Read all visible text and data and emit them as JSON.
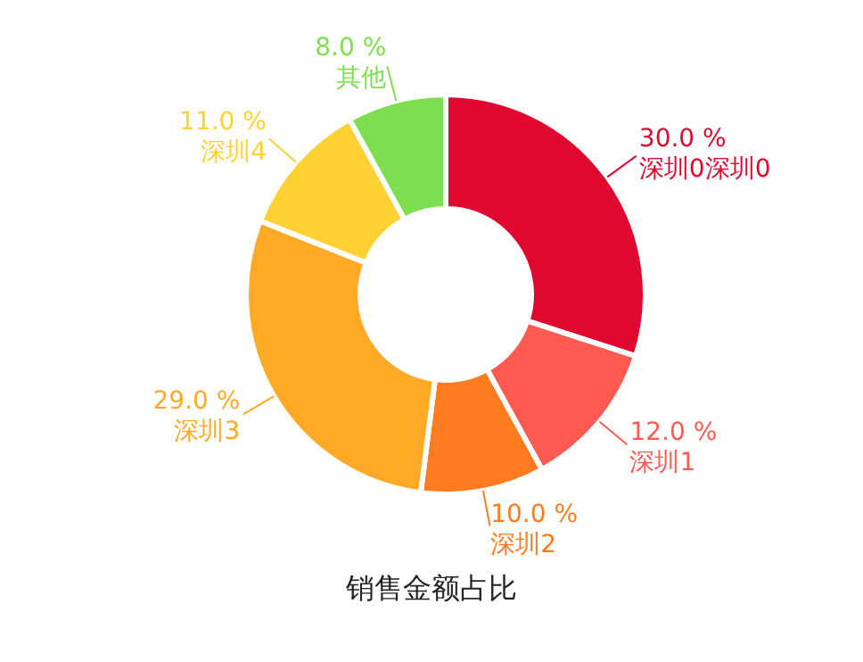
{
  "chart_data": {
    "type": "donut",
    "title": "销售金额占比",
    "categories": [
      "深圳0深圳0",
      "深圳1",
      "深圳2",
      "深圳3",
      "深圳4",
      "其他"
    ],
    "values": [
      30,
      12,
      10,
      29,
      11,
      8
    ],
    "value_labels": [
      "30.0 %",
      "12.0 %",
      "10.0 %",
      "29.0 %",
      "11.0 %",
      "8.0 %"
    ],
    "colors": [
      "#e0082f",
      "#ff5a52",
      "#ff7b1f",
      "#ffaa26",
      "#ffd133",
      "#7ddf4f"
    ],
    "legend": false
  }
}
